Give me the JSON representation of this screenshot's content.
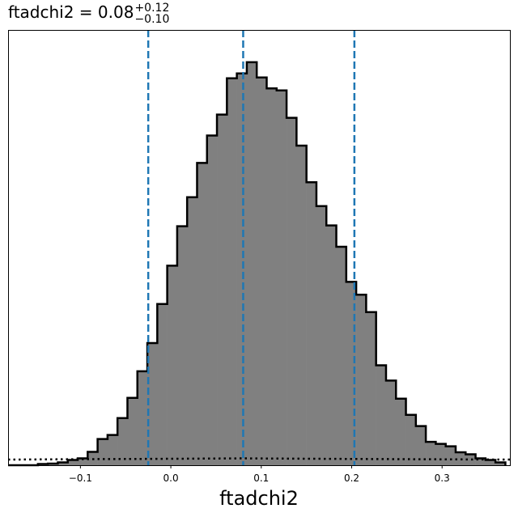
{
  "chart_data": {
    "type": "histogram",
    "title": {
      "main": "ftadchi2 = 0.08",
      "sup": "+0.12",
      "sub": "−0.10"
    },
    "xlabel": "ftadchi2",
    "ylabel": "",
    "xlim": [
      -0.18,
      0.375
    ],
    "ylim": [
      0,
      1.08
    ],
    "x_tick_labels": [
      "−0.1",
      "0.0",
      "0.1",
      "0.2",
      "0.3"
    ],
    "x_tick_values": [
      -0.1,
      0.0,
      0.1,
      0.2,
      0.3
    ],
    "y_ticks_shown": false,
    "bin_edges": [
      -0.18,
      -0.169,
      -0.158,
      -0.147,
      -0.136,
      -0.125,
      -0.114,
      -0.103,
      -0.092,
      -0.081,
      -0.07,
      -0.059,
      -0.048,
      -0.037,
      -0.026,
      -0.015,
      -0.004,
      0.007,
      0.018,
      0.029,
      0.04,
      0.051,
      0.062,
      0.073,
      0.084,
      0.095,
      0.106,
      0.117,
      0.128,
      0.139,
      0.15,
      0.161,
      0.172,
      0.183,
      0.194,
      0.205,
      0.216,
      0.227,
      0.238,
      0.249,
      0.26,
      0.271,
      0.282,
      0.293,
      0.304,
      0.315,
      0.326,
      0.337,
      0.348,
      0.359,
      0.37
    ],
    "counts": [
      0.0,
      0.0,
      0.0,
      0.003,
      0.004,
      0.007,
      0.013,
      0.017,
      0.033,
      0.065,
      0.075,
      0.117,
      0.167,
      0.233,
      0.303,
      0.4,
      0.495,
      0.593,
      0.665,
      0.75,
      0.818,
      0.87,
      0.96,
      0.972,
      1.0,
      0.962,
      0.935,
      0.93,
      0.862,
      0.793,
      0.702,
      0.643,
      0.595,
      0.542,
      0.455,
      0.423,
      0.38,
      0.248,
      0.21,
      0.165,
      0.125,
      0.097,
      0.058,
      0.053,
      0.047,
      0.032,
      0.027,
      0.017,
      0.013,
      0.007
    ],
    "histogram_fill": "#808080",
    "histogram_edge": "#000000",
    "vertical_lines": [
      {
        "x": -0.025,
        "style": "dashed",
        "color": "#1f77b4"
      },
      {
        "x": 0.08,
        "style": "dashed",
        "color": "#1f77b4"
      },
      {
        "x": 0.203,
        "style": "dashed",
        "color": "#1f77b4"
      }
    ],
    "reference_curve": {
      "style": "dotted",
      "color": "#000000",
      "x": [
        -0.18,
        -0.1,
        0.0,
        0.08,
        0.16,
        0.26,
        0.375
      ],
      "y": [
        0.014,
        0.015,
        0.016,
        0.017,
        0.016,
        0.015,
        0.014
      ]
    }
  }
}
